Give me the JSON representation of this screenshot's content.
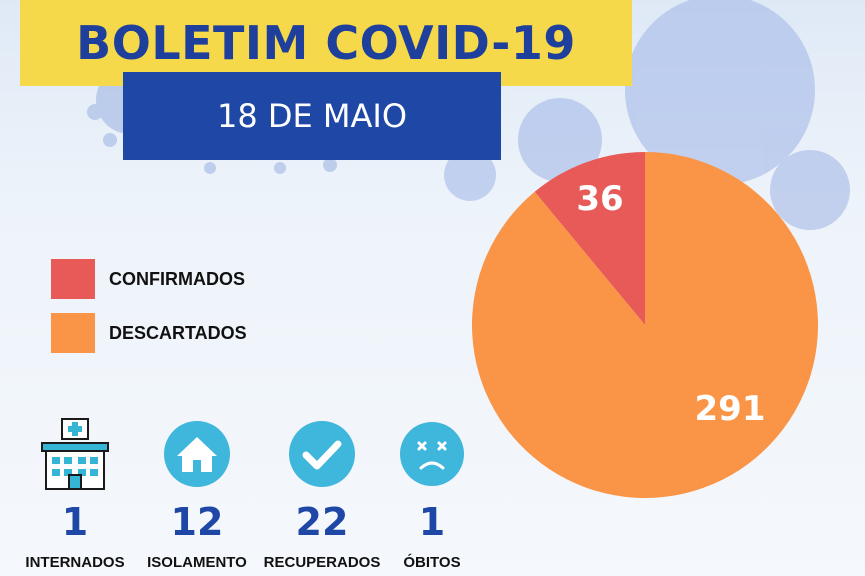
{
  "header": {
    "title": "BOLETIM COVID-19",
    "date": "18 DE MAIO"
  },
  "legend": [
    {
      "label": "CONFIRMADOS",
      "color": "#e85a58"
    },
    {
      "label": "DESCARTADOS",
      "color": "#fa9447"
    }
  ],
  "chart_data": {
    "type": "pie",
    "slices": [
      {
        "category": "CONFIRMADOS",
        "value": 36,
        "label": "36",
        "color": "#e85a58"
      },
      {
        "category": "DESCARTADOS",
        "value": 291,
        "label": "291",
        "color": "#fa9447"
      }
    ]
  },
  "stats": [
    {
      "value": "1",
      "label": "INTERNADOS",
      "icon": "hospital-icon"
    },
    {
      "value": "12",
      "label": "ISOLAMENTO",
      "icon": "house-icon"
    },
    {
      "value": "22",
      "label": "RECUPERADOS",
      "icon": "checkmark-icon"
    },
    {
      "value": "1",
      "label": "ÓBITOS",
      "icon": "sad-face-icon"
    }
  ]
}
